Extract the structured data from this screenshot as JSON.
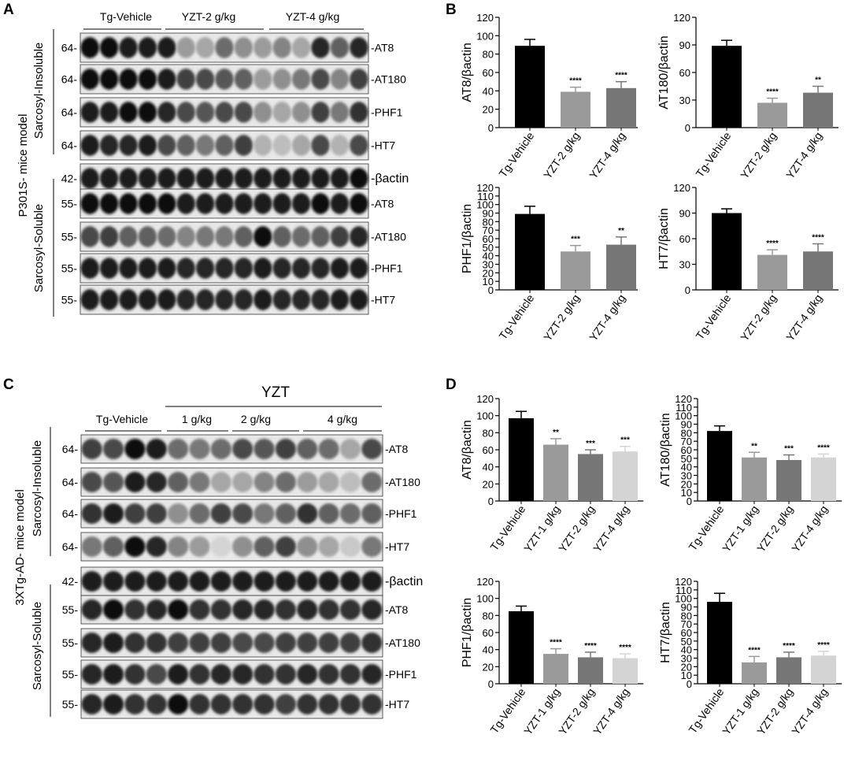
{
  "panels": {
    "A": "A",
    "B": "B",
    "C": "C",
    "D": "D"
  },
  "blotA": {
    "model_label": "P301S- mice model",
    "groups": [
      "Tg-Vehicle",
      "YZT-2 g/kg",
      "YZT-4 g/kg"
    ],
    "fractions": [
      "Sarcosyl-Insoluble",
      "Sarcosyl-Soluble"
    ],
    "rows": [
      {
        "mw": "64-",
        "label": "-AT8",
        "intensity": [
          0.95,
          0.95,
          0.9,
          0.9,
          0.9,
          0.35,
          0.3,
          0.55,
          0.4,
          0.35,
          0.45,
          0.3,
          0.85,
          0.6,
          0.85
        ]
      },
      {
        "mw": "64-",
        "label": "-AT180",
        "intensity": [
          0.95,
          0.95,
          0.95,
          0.95,
          0.9,
          0.75,
          0.7,
          0.65,
          0.6,
          0.35,
          0.4,
          0.5,
          0.7,
          0.45,
          0.75
        ]
      },
      {
        "mw": "64-",
        "label": "-PHF1",
        "intensity": [
          0.9,
          0.9,
          0.95,
          0.95,
          0.85,
          0.7,
          0.65,
          0.7,
          0.7,
          0.4,
          0.3,
          0.4,
          0.75,
          0.5,
          0.8
        ]
      },
      {
        "mw": "64-",
        "label": "-HT7",
        "intensity": [
          0.9,
          0.85,
          0.85,
          0.9,
          0.7,
          0.6,
          0.5,
          0.6,
          0.75,
          0.25,
          0.2,
          0.3,
          0.7,
          0.25,
          0.7
        ]
      },
      {
        "mw": "42-",
        "label": "-βactin",
        "intensity": [
          0.9,
          0.9,
          0.9,
          0.9,
          0.9,
          0.9,
          0.9,
          0.9,
          0.9,
          0.9,
          0.9,
          0.9,
          0.9,
          0.9,
          0.95
        ]
      },
      {
        "mw": "55-",
        "label": "-AT8",
        "intensity": [
          0.95,
          0.95,
          0.95,
          0.95,
          0.95,
          0.9,
          0.9,
          0.9,
          0.9,
          0.9,
          0.9,
          0.9,
          0.95,
          0.9,
          0.95
        ]
      },
      {
        "mw": "55-",
        "label": "-AT180",
        "intensity": [
          0.7,
          0.75,
          0.6,
          0.6,
          0.55,
          0.45,
          0.5,
          0.5,
          0.6,
          0.95,
          0.6,
          0.55,
          0.6,
          0.75,
          0.85
        ]
      },
      {
        "mw": "55-",
        "label": "-PHF1",
        "intensity": [
          0.9,
          0.9,
          0.9,
          0.9,
          0.9,
          0.85,
          0.85,
          0.85,
          0.85,
          0.9,
          0.85,
          0.85,
          0.85,
          0.9,
          0.9
        ]
      },
      {
        "mw": "55-",
        "label": "-HT7",
        "intensity": [
          0.9,
          0.9,
          0.9,
          0.9,
          0.9,
          0.85,
          0.85,
          0.85,
          0.85,
          0.9,
          0.85,
          0.85,
          0.85,
          0.9,
          0.9
        ]
      }
    ]
  },
  "blotC": {
    "model_label": "3XTg-AD- mice model",
    "top_group": "YZT",
    "groups": [
      "Tg-Vehicle",
      "1 g/kg",
      "2 g/kg",
      "4 g/kg"
    ],
    "fractions": [
      "Sarcosyl-Insoluble",
      "Sarcosyl-Soluble"
    ],
    "rows": [
      {
        "mw": "64-",
        "label": "-AT8",
        "intensity": [
          0.75,
          0.7,
          0.95,
          0.9,
          0.55,
          0.5,
          0.55,
          0.7,
          0.65,
          0.75,
          0.6,
          0.55,
          0.3,
          0.7
        ]
      },
      {
        "mw": "64-",
        "label": "-AT180",
        "intensity": [
          0.7,
          0.65,
          0.9,
          0.85,
          0.6,
          0.5,
          0.3,
          0.3,
          0.45,
          0.55,
          0.35,
          0.3,
          0.2,
          0.55
        ]
      },
      {
        "mw": "64-",
        "label": "-PHF1",
        "intensity": [
          0.8,
          0.9,
          0.75,
          0.75,
          0.4,
          0.55,
          0.75,
          0.7,
          0.5,
          0.6,
          0.8,
          0.6,
          0.55,
          0.6
        ]
      },
      {
        "mw": "64-",
        "label": "-HT7",
        "intensity": [
          0.5,
          0.6,
          0.95,
          0.85,
          0.45,
          0.35,
          0.1,
          0.4,
          0.6,
          0.75,
          0.4,
          0.3,
          0.15,
          0.5
        ]
      },
      {
        "mw": "42-",
        "label": "-βactin",
        "intensity": [
          0.9,
          0.9,
          0.9,
          0.9,
          0.9,
          0.9,
          0.9,
          0.9,
          0.9,
          0.9,
          0.9,
          0.9,
          0.9,
          0.9
        ]
      },
      {
        "mw": "55-",
        "label": "-AT8",
        "intensity": [
          0.85,
          0.95,
          0.8,
          0.85,
          0.95,
          0.8,
          0.8,
          0.85,
          0.85,
          0.8,
          0.85,
          0.8,
          0.8,
          0.85
        ]
      },
      {
        "mw": "55-",
        "label": "-AT180",
        "intensity": [
          0.85,
          0.9,
          0.8,
          0.8,
          0.75,
          0.75,
          0.75,
          0.7,
          0.7,
          0.75,
          0.75,
          0.75,
          0.75,
          0.8
        ]
      },
      {
        "mw": "55-",
        "label": "-PHF1",
        "intensity": [
          0.85,
          0.9,
          0.8,
          0.7,
          0.9,
          0.8,
          0.85,
          0.85,
          0.8,
          0.8,
          0.85,
          0.8,
          0.8,
          0.85
        ]
      },
      {
        "mw": "55-",
        "label": "-HT7",
        "intensity": [
          0.85,
          0.9,
          0.8,
          0.8,
          0.95,
          0.8,
          0.8,
          0.8,
          0.8,
          0.75,
          0.8,
          0.8,
          0.8,
          0.8
        ]
      }
    ]
  },
  "colors": {
    "bar_vehicle": "#000000",
    "bar_2gkg": "#9a9a9a",
    "bar_4gkg": "#777777",
    "bar_1gkg_D": "#9a9a9a",
    "bar_2gkg_D": "#777777",
    "bar_4gkg_D": "#d4d4d4"
  },
  "chart_data": [
    {
      "panel": "B",
      "type": "bar",
      "ylabel": "AT8/βactin",
      "ylim": [
        0,
        120
      ],
      "yticks": [
        0,
        20,
        40,
        60,
        80,
        100,
        120
      ],
      "categories": [
        "Tg-Vehicle",
        "YZT-2 g/kg",
        "YZT-4 g/kg"
      ],
      "values": [
        89,
        39,
        43
      ],
      "errors": [
        7,
        5,
        7
      ],
      "sig": [
        "",
        "****",
        "****"
      ]
    },
    {
      "panel": "B",
      "type": "bar",
      "ylabel": "AT180/βactin",
      "ylim": [
        0,
        120
      ],
      "yticks": [
        0,
        30,
        60,
        90,
        120
      ],
      "categories": [
        "Tg-Vehicle",
        "YZT-2 g/kg",
        "YZT-4 g/kg"
      ],
      "values": [
        89,
        27,
        38
      ],
      "errors": [
        6,
        5,
        7
      ],
      "sig": [
        "",
        "****",
        "**"
      ]
    },
    {
      "panel": "B",
      "type": "bar",
      "ylabel": "PHF1/βactin",
      "ylim": [
        0,
        120
      ],
      "yticks": [
        0,
        10,
        20,
        30,
        40,
        50,
        60,
        70,
        80,
        90,
        100,
        110,
        120
      ],
      "categories": [
        "Tg-Vehicle",
        "YZT-2 g/kg",
        "YZT-4 g/kg"
      ],
      "values": [
        89,
        45,
        53
      ],
      "errors": [
        9,
        7,
        9
      ],
      "sig": [
        "",
        "***",
        "**"
      ]
    },
    {
      "panel": "B",
      "type": "bar",
      "ylabel": "HT7/βactin",
      "ylim": [
        0,
        120
      ],
      "yticks": [
        0,
        30,
        60,
        90,
        120
      ],
      "categories": [
        "Tg-Vehicle",
        "YZT-2 g/kg",
        "YZT-4 g/kg"
      ],
      "values": [
        90,
        41,
        45
      ],
      "errors": [
        5,
        6,
        9
      ],
      "sig": [
        "",
        "****",
        "****"
      ]
    },
    {
      "panel": "D",
      "type": "bar",
      "ylabel": "AT8/βactin",
      "ylim": [
        0,
        120
      ],
      "yticks": [
        0,
        20,
        40,
        60,
        80,
        100,
        120
      ],
      "categories": [
        "Tg-Vehicle",
        "YZT-1 g/kg",
        "YZT-2 g/kg",
        "YZT-4 g/kg"
      ],
      "values": [
        97,
        66,
        55,
        58
      ],
      "errors": [
        8,
        7,
        5,
        6
      ],
      "sig": [
        "",
        "**",
        "***",
        "***"
      ]
    },
    {
      "panel": "D",
      "type": "bar",
      "ylabel": "AT180/βactin",
      "ylim": [
        0,
        120
      ],
      "yticks": [
        0,
        10,
        20,
        30,
        40,
        50,
        60,
        70,
        80,
        90,
        100,
        110,
        120
      ],
      "categories": [
        "Tg-Vehicle",
        "YZT-1 g/kg",
        "YZT-2 g/kg",
        "YZT-4 g/kg"
      ],
      "values": [
        82,
        51,
        48,
        51
      ],
      "errors": [
        6,
        6,
        6,
        4
      ],
      "sig": [
        "",
        "**",
        "***",
        "****"
      ]
    },
    {
      "panel": "D",
      "type": "bar",
      "ylabel": "PHF1/βactin",
      "ylim": [
        0,
        120
      ],
      "yticks": [
        0,
        20,
        40,
        60,
        80,
        100,
        120
      ],
      "categories": [
        "Tg-Vehicle",
        "YZT-1 g/kg",
        "YZT-2 g/kg",
        "YZT-4 g/kg"
      ],
      "values": [
        85,
        35,
        31,
        30
      ],
      "errors": [
        6,
        6,
        6,
        5
      ],
      "sig": [
        "",
        "****",
        "****",
        "****"
      ]
    },
    {
      "panel": "D",
      "type": "bar",
      "ylabel": "HT7/βactin",
      "ylim": [
        0,
        120
      ],
      "yticks": [
        0,
        10,
        20,
        30,
        40,
        50,
        60,
        70,
        80,
        90,
        100,
        110,
        120
      ],
      "categories": [
        "Tg-Vehicle",
        "YZT-1 g/kg",
        "YZT-2 g/kg",
        "YZT-4 g/kg"
      ],
      "values": [
        96,
        25,
        31,
        33
      ],
      "errors": [
        10,
        7,
        6,
        5
      ],
      "sig": [
        "",
        "****",
        "****",
        "****"
      ]
    }
  ]
}
